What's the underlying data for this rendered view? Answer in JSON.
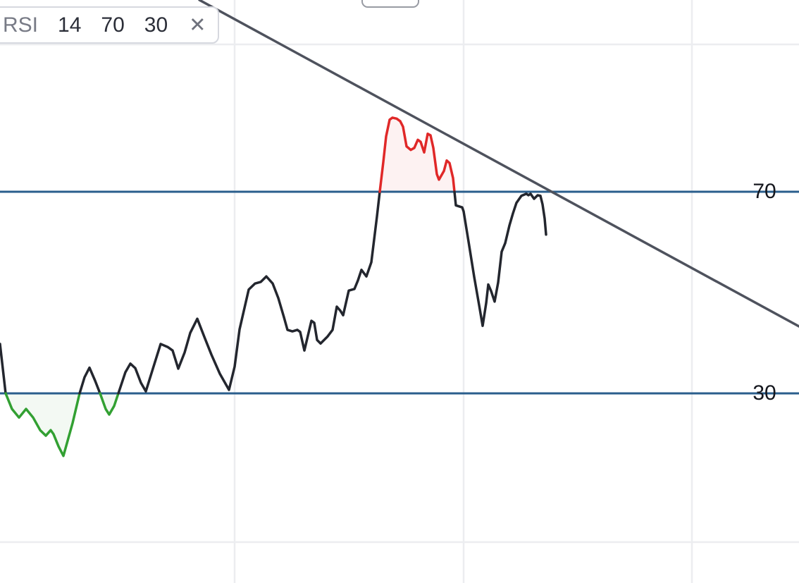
{
  "legend": {
    "indicator_name": "RSI",
    "params": [
      "14",
      "70",
      "30"
    ],
    "close_glyph": "✕"
  },
  "axis_labels": {
    "overbought": "70",
    "oversold": "30"
  },
  "chart_data": {
    "type": "line",
    "title": "RSI 14 70 30",
    "ylabel": "RSI",
    "ylim": [
      0,
      100
    ],
    "grid": true,
    "legend_position": "top-left",
    "thresholds": {
      "overbought": 70,
      "oversold": 30
    },
    "scale": {
      "y_at_70": 272,
      "y_at_30": 558
    },
    "gridlines": {
      "vertical_x": [
        333,
        658,
        982
      ],
      "horizontal_y": [
        63,
        769
      ]
    },
    "trendline": {
      "x1": 283,
      "y1": 0,
      "x2": 1134,
      "y2": 463
    },
    "colors": {
      "line": "#23262e",
      "overbought": "#e02828",
      "oversold": "#32a032",
      "overbought_fill": "rgba(224,40,40,0.06)",
      "oversold_fill": "rgba(50,160,50,0.06)",
      "band_line": "#2a5e8c",
      "grid": "#ecedf0",
      "trendline": "#4e525d"
    },
    "series": [
      {
        "name": "RSI",
        "x_unit": "px",
        "points": [
          [
            0,
            39.8
          ],
          [
            8,
            30.0
          ],
          [
            17,
            26.9
          ],
          [
            27,
            25.2
          ],
          [
            37,
            26.9
          ],
          [
            47,
            25.2
          ],
          [
            57,
            22.7
          ],
          [
            65,
            21.6
          ],
          [
            72,
            22.7
          ],
          [
            76,
            21.9
          ],
          [
            83,
            19.5
          ],
          [
            90,
            17.6
          ],
          [
            103,
            24.1
          ],
          [
            113,
            30.0
          ],
          [
            120,
            33.2
          ],
          [
            127,
            35.1
          ],
          [
            135,
            32.5
          ],
          [
            142,
            30.0
          ],
          [
            150,
            26.9
          ],
          [
            155,
            25.8
          ],
          [
            162,
            27.5
          ],
          [
            168,
            30.0
          ],
          [
            178,
            34.2
          ],
          [
            185,
            35.9
          ],
          [
            192,
            35.0
          ],
          [
            200,
            32.1
          ],
          [
            207,
            30.4
          ],
          [
            217,
            34.9
          ],
          [
            228,
            39.8
          ],
          [
            238,
            39.2
          ],
          [
            245,
            38.5
          ],
          [
            253,
            34.9
          ],
          [
            262,
            38.1
          ],
          [
            270,
            42.0
          ],
          [
            280,
            44.8
          ],
          [
            290,
            41.2
          ],
          [
            300,
            37.7
          ],
          [
            312,
            33.9
          ],
          [
            325,
            30.7
          ],
          [
            333,
            35.3
          ],
          [
            340,
            42.7
          ],
          [
            353,
            50.6
          ],
          [
            362,
            51.8
          ],
          [
            370,
            52.1
          ],
          [
            378,
            53.2
          ],
          [
            387,
            51.8
          ],
          [
            395,
            48.9
          ],
          [
            403,
            45.1
          ],
          [
            408,
            42.6
          ],
          [
            415,
            42.3
          ],
          [
            422,
            42.6
          ],
          [
            426,
            42.2
          ],
          [
            432,
            38.5
          ],
          [
            442,
            44.4
          ],
          [
            446,
            44.0
          ],
          [
            450,
            40.6
          ],
          [
            455,
            39.9
          ],
          [
            465,
            41.3
          ],
          [
            472,
            42.6
          ],
          [
            478,
            47.2
          ],
          [
            483,
            46.4
          ],
          [
            487,
            45.5
          ],
          [
            495,
            50.4
          ],
          [
            503,
            50.7
          ],
          [
            508,
            52.4
          ],
          [
            513,
            54.5
          ],
          [
            520,
            53.2
          ],
          [
            527,
            56.0
          ],
          [
            535,
            65.1
          ],
          [
            539,
            70.0
          ],
          [
            544,
            75.9
          ],
          [
            548,
            81.0
          ],
          [
            553,
            84.3
          ],
          [
            557,
            84.7
          ],
          [
            563,
            84.5
          ],
          [
            568,
            84.0
          ],
          [
            572,
            82.9
          ],
          [
            577,
            79.0
          ],
          [
            583,
            78.3
          ],
          [
            588,
            78.7
          ],
          [
            593,
            80.3
          ],
          [
            597,
            79.9
          ],
          [
            602,
            77.8
          ],
          [
            607,
            81.5
          ],
          [
            611,
            81.2
          ],
          [
            615,
            78.7
          ],
          [
            620,
            73.5
          ],
          [
            623,
            72.4
          ],
          [
            630,
            74.1
          ],
          [
            634,
            76.2
          ],
          [
            638,
            75.7
          ],
          [
            643,
            72.7
          ],
          [
            645,
            70.0
          ],
          [
            647,
            67.3
          ],
          [
            656,
            66.9
          ],
          [
            658,
            66.1
          ],
          [
            665,
            60.1
          ],
          [
            673,
            53.1
          ],
          [
            680,
            47.5
          ],
          [
            685,
            43.4
          ],
          [
            690,
            47.9
          ],
          [
            693,
            51.6
          ],
          [
            697,
            50.3
          ],
          [
            702,
            48.2
          ],
          [
            707,
            52.0
          ],
          [
            712,
            58.1
          ],
          [
            717,
            59.8
          ],
          [
            723,
            63.3
          ],
          [
            728,
            65.7
          ],
          [
            733,
            67.8
          ],
          [
            740,
            69.2
          ],
          [
            747,
            69.6
          ],
          [
            750,
            69.3
          ],
          [
            753,
            69.6
          ],
          [
            758,
            68.6
          ],
          [
            763,
            69.3
          ],
          [
            767,
            69.2
          ],
          [
            770,
            67.5
          ],
          [
            773,
            64.7
          ],
          [
            775,
            61.5
          ]
        ]
      }
    ]
  }
}
